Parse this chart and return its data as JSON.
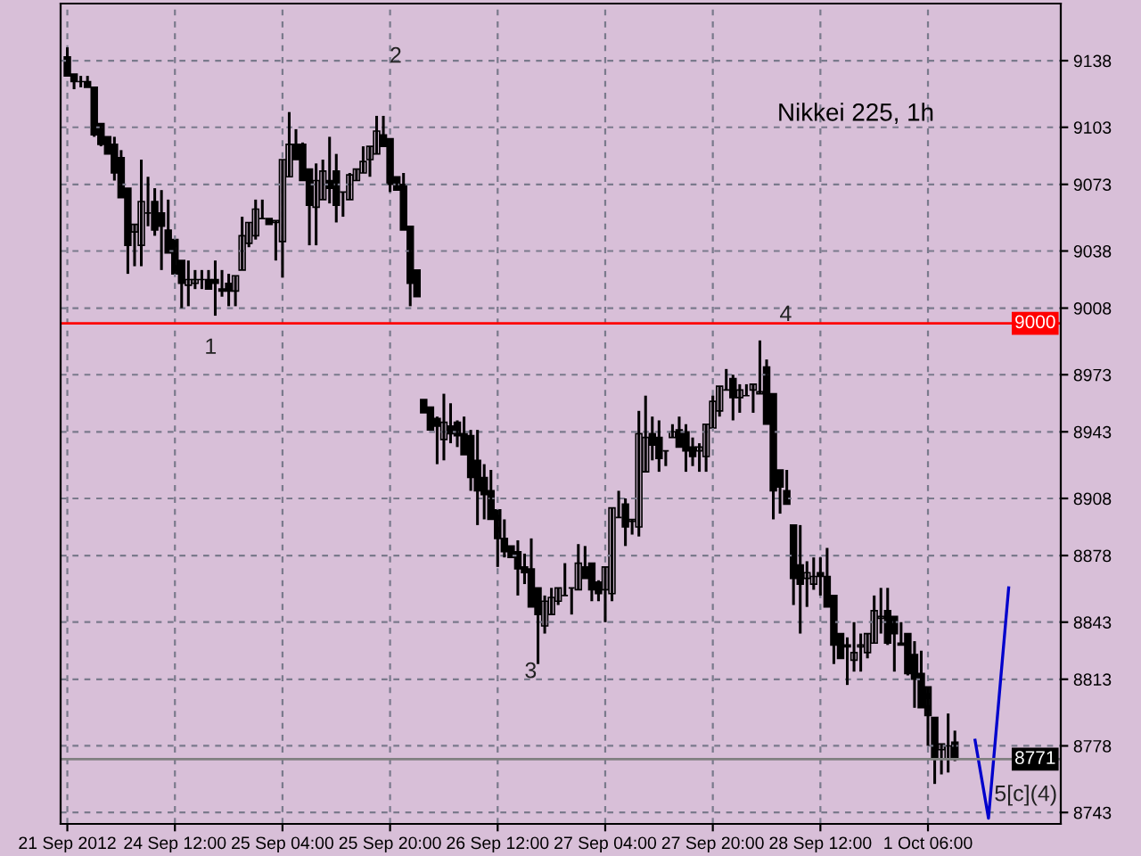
{
  "chart_data": {
    "type": "candlestick",
    "title": "Nikkei 225, 1h",
    "categories": [
      "21 Sep 2012",
      null,
      null,
      null,
      null,
      null,
      null,
      null,
      null,
      null,
      null,
      null,
      null,
      null,
      null,
      null,
      "24 Sep 12:00",
      null,
      null,
      null,
      null,
      null,
      null,
      null,
      null,
      null,
      null,
      null,
      null,
      null,
      null,
      null,
      "25 Sep 04:00",
      null,
      null,
      null,
      null,
      null,
      null,
      null,
      null,
      null,
      null,
      null,
      null,
      null,
      null,
      null,
      "25 Sep 20:00",
      null,
      null,
      null,
      null,
      null,
      null,
      null,
      null,
      null,
      null,
      null,
      null,
      null,
      null,
      null,
      "26 Sep 12:00",
      null,
      null,
      null,
      null,
      null,
      null,
      null,
      null,
      null,
      null,
      null,
      null,
      null,
      null,
      null,
      "27 Sep 04:00",
      null,
      null,
      null,
      null,
      null,
      null,
      null,
      null,
      null,
      null,
      null,
      null,
      null,
      null,
      null,
      "27 Sep 20:00",
      null,
      null,
      null,
      null,
      null,
      null,
      null,
      null,
      null,
      null,
      null,
      null,
      null,
      null,
      null,
      "28 Sep 12:00",
      null,
      null,
      null,
      null,
      null,
      null,
      null,
      null,
      null,
      null,
      null,
      null,
      null,
      null,
      null,
      "1 Oct 06:00",
      null,
      null,
      null,
      null,
      null,
      null,
      null,
      null,
      null,
      null,
      null,
      null
    ],
    "ohlc": [
      [
        9140,
        9145,
        9130,
        9130
      ],
      [
        9131,
        9131,
        9123,
        9127
      ],
      [
        9127,
        9130,
        9124,
        9127
      ],
      [
        9127,
        9130,
        9124,
        9124
      ],
      [
        9124,
        9124,
        9098,
        9099
      ],
      [
        9105,
        9105,
        9093,
        9094
      ],
      [
        9098,
        9098,
        9089,
        9089
      ],
      [
        9094,
        9098,
        9075,
        9079
      ],
      [
        9087,
        9091,
        9066,
        9066
      ],
      [
        9071,
        9071,
        9026,
        9041
      ],
      [
        9048,
        9052,
        9030,
        9052
      ],
      [
        9041,
        9086,
        9030,
        9064
      ],
      [
        9058,
        9077,
        9051,
        9058
      ],
      [
        9064,
        9071,
        9046,
        9049
      ],
      [
        9058,
        9070,
        9028,
        9051
      ],
      [
        9049,
        9065,
        9037,
        9037
      ],
      [
        9044,
        9044,
        9026,
        9026
      ],
      [
        9033,
        9033,
        9008,
        9021
      ],
      [
        9020,
        9033,
        9009,
        9023
      ],
      [
        9021,
        9028,
        9018,
        9023
      ],
      [
        9023,
        9028,
        9018,
        9023
      ],
      [
        9023,
        9028,
        9018,
        9018
      ],
      [
        9023,
        9033,
        9004,
        9021
      ],
      [
        9018,
        9028,
        9014,
        9017
      ],
      [
        9021,
        9026,
        9009,
        9017
      ],
      [
        9017,
        9025,
        9009,
        9025
      ],
      [
        9028,
        9056,
        9028,
        9046
      ],
      [
        9042,
        9053,
        9040,
        9053
      ],
      [
        9046,
        9065,
        9044,
        9060
      ],
      [
        9055,
        9065,
        9055,
        9055
      ],
      [
        9055,
        9055,
        9052,
        9052
      ],
      [
        9053,
        9054,
        9033,
        9054
      ],
      [
        9043,
        9086,
        9024,
        9086
      ],
      [
        9077,
        9111,
        9077,
        9094
      ],
      [
        9094,
        9102,
        9086,
        9086
      ],
      [
        9094,
        9095,
        9075,
        9075
      ],
      [
        9081,
        9081,
        9041,
        9062
      ],
      [
        9061,
        9084,
        9041,
        9075
      ],
      [
        9065,
        9086,
        9065,
        9080
      ],
      [
        9075,
        9098,
        9063,
        9071
      ],
      [
        9080,
        9089,
        9053,
        9062
      ],
      [
        9069,
        9069,
        9056,
        9069
      ],
      [
        9065,
        9079,
        9065,
        9078
      ],
      [
        9075,
        9081,
        9075,
        9081
      ],
      [
        9079,
        9093,
        9079,
        9085
      ],
      [
        9086,
        9093,
        9077,
        9093
      ],
      [
        9089,
        9109,
        9089,
        9101
      ],
      [
        9099,
        9109,
        9093,
        9093
      ],
      [
        9097,
        9097,
        9069,
        9073
      ],
      [
        9077,
        9077,
        9070,
        9070
      ],
      [
        9073,
        9079,
        9049,
        9049
      ],
      [
        9051,
        9051,
        9009,
        9021
      ],
      [
        9028,
        9028,
        9014,
        9014
      ],
      [
        8960,
        8960,
        8953,
        8953
      ],
      [
        8956,
        8956,
        8944,
        8944
      ],
      [
        8950,
        8951,
        8926,
        8946
      ],
      [
        8939,
        8963,
        8928,
        8948
      ],
      [
        8946,
        8958,
        8937,
        8942
      ],
      [
        8948,
        8949,
        8935,
        8941
      ],
      [
        8942,
        8951,
        8931,
        8931
      ],
      [
        8941,
        8944,
        8912,
        8919
      ],
      [
        8928,
        8944,
        8894,
        8912
      ],
      [
        8919,
        8926,
        8897,
        8910
      ],
      [
        8912,
        8923,
        8897,
        8897
      ],
      [
        8902,
        8902,
        8872,
        8887
      ],
      [
        8887,
        8897,
        8877,
        8880
      ],
      [
        8883,
        8883,
        8877,
        8877
      ],
      [
        8880,
        8886,
        8857,
        8871
      ],
      [
        8872,
        8879,
        8863,
        8869
      ],
      [
        8871,
        8887,
        8851,
        8851
      ],
      [
        8861,
        8861,
        8821,
        8847
      ],
      [
        8841,
        8857,
        8837,
        8854
      ],
      [
        8847,
        8861,
        8847,
        8856
      ],
      [
        8854,
        8861,
        8852,
        8861
      ],
      [
        8857,
        8874,
        8857,
        8857
      ],
      [
        8861,
        8861,
        8847,
        8861
      ],
      [
        8860,
        8884,
        8860,
        8874
      ],
      [
        8872,
        8883,
        8866,
        8866
      ],
      [
        8874,
        8874,
        8854,
        8860
      ],
      [
        8864,
        8865,
        8854,
        8858
      ],
      [
        8860,
        8872,
        8843,
        8872
      ],
      [
        8858,
        8903,
        8854,
        8903
      ],
      [
        8898,
        8912,
        8898,
        8898
      ],
      [
        8905,
        8908,
        8883,
        8893
      ],
      [
        8896,
        8897,
        8889,
        8897
      ],
      [
        8893,
        8954,
        8888,
        8942
      ],
      [
        8922,
        8962,
        8922,
        8940
      ],
      [
        8942,
        8951,
        8928,
        8936
      ],
      [
        8940,
        8949,
        8922,
        8929
      ],
      [
        8933,
        8933,
        8925,
        8933
      ],
      [
        8940,
        8947,
        8940,
        8943
      ],
      [
        8944,
        8951,
        8935,
        8935
      ],
      [
        8943,
        8947,
        8922,
        8933
      ],
      [
        8935,
        8940,
        8925,
        8930
      ],
      [
        8933,
        8937,
        8922,
        8935
      ],
      [
        8930,
        8947,
        8922,
        8947
      ],
      [
        8945,
        8962,
        8945,
        8959
      ],
      [
        8954,
        8967,
        8951,
        8967
      ],
      [
        8965,
        8976,
        8965,
        8965
      ],
      [
        8971,
        8973,
        8949,
        8961
      ],
      [
        8961,
        8968,
        8953,
        8965
      ],
      [
        8962,
        8968,
        8962,
        8962
      ],
      [
        8965,
        8968,
        8953,
        8968
      ],
      [
        8963,
        8991,
        8963,
        8964
      ],
      [
        8977,
        8981,
        8947,
        8947
      ],
      [
        8963,
        8963,
        8897,
        8912
      ],
      [
        8923,
        8923,
        8900,
        8914
      ],
      [
        8912,
        8923,
        8905,
        8905
      ],
      [
        8894,
        8894,
        8852,
        8866
      ],
      [
        8873,
        8894,
        8837,
        8863
      ],
      [
        8866,
        8875,
        8851,
        8869
      ],
      [
        8863,
        8877,
        8860,
        8867
      ],
      [
        8869,
        8877,
        8857,
        8867
      ],
      [
        8867,
        8882,
        8851,
        8851
      ],
      [
        8857,
        8857,
        8821,
        8831
      ],
      [
        8837,
        8837,
        8824,
        8824
      ],
      [
        8831,
        8835,
        8810,
        8830
      ],
      [
        8823,
        8843,
        8817,
        8827
      ],
      [
        8830,
        8837,
        8817,
        8831
      ],
      [
        8827,
        8837,
        8824,
        8837
      ],
      [
        8832,
        8857,
        8832,
        8849
      ],
      [
        8845,
        8861,
        8837,
        8846
      ],
      [
        8849,
        8861,
        8831,
        8832
      ],
      [
        8846,
        8846,
        8817,
        8837
      ],
      [
        8832,
        8843,
        8831,
        8831
      ],
      [
        8837,
        8837,
        8815,
        8816
      ],
      [
        8826,
        8833,
        8798,
        8813
      ],
      [
        8816,
        8828,
        8798,
        8798
      ],
      [
        8809,
        8809,
        8778,
        8794
      ],
      [
        8793,
        8793,
        8758,
        8771
      ],
      [
        8776,
        8779,
        8763,
        8779
      ],
      [
        8771,
        8795,
        8764,
        8778
      ],
      [
        8780,
        8786,
        8770,
        8771
      ],
      null,
      null,
      null,
      null,
      null,
      null,
      null,
      null
    ],
    "color": "#000000",
    "series": [
      {
        "type": "line",
        "color": "#0000cc",
        "values": [
          null,
          null,
          null,
          null,
          null,
          null,
          null,
          null,
          null,
          null,
          null,
          null,
          null,
          null,
          null,
          null,
          null,
          null,
          null,
          null,
          null,
          null,
          null,
          null,
          null,
          null,
          null,
          null,
          null,
          null,
          null,
          null,
          null,
          null,
          null,
          null,
          null,
          null,
          null,
          null,
          null,
          null,
          null,
          null,
          null,
          null,
          null,
          null,
          null,
          null,
          null,
          null,
          null,
          null,
          null,
          null,
          null,
          null,
          null,
          null,
          null,
          null,
          null,
          null,
          null,
          null,
          null,
          null,
          null,
          null,
          null,
          null,
          null,
          null,
          null,
          null,
          null,
          null,
          null,
          null,
          null,
          null,
          null,
          null,
          null,
          null,
          null,
          null,
          null,
          null,
          null,
          null,
          null,
          null,
          null,
          null,
          null,
          null,
          null,
          null,
          null,
          null,
          null,
          null,
          null,
          null,
          null,
          null,
          null,
          null,
          null,
          null,
          null,
          null,
          null,
          null,
          null,
          null,
          null,
          null,
          null,
          null,
          null,
          null,
          null,
          null,
          null,
          null,
          null,
          null,
          null,
          null,
          null,
          null,
          null,
          8781,
          null,
          8740,
          null,
          null,
          8861
        ]
      }
    ],
    "ylim": [
      8737,
      9168
    ],
    "yticks": [
      8743,
      8778,
      8813,
      8843,
      8878,
      8908,
      8943,
      8973,
      9008,
      9038,
      9073,
      9103,
      9138
    ],
    "ref_lines": [
      {
        "axis": "y",
        "value": 9000,
        "label": "9000",
        "color": "#ff0000"
      },
      {
        "axis": "y",
        "value": 8771,
        "label": "8771",
        "color": "#808080"
      }
    ],
    "annotations": [
      "1",
      "2",
      "3",
      "4",
      "5[c](4)"
    ],
    "grid": true
  }
}
